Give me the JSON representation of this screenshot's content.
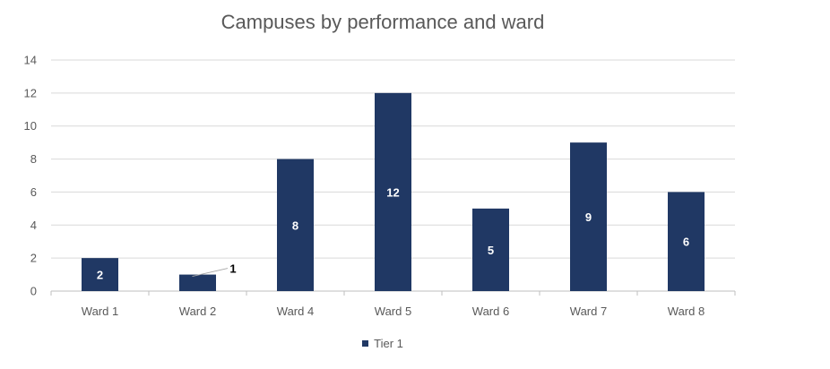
{
  "chart_data": {
    "type": "bar",
    "title": "Campuses by performance and ward",
    "categories": [
      "Ward 1",
      "Ward 2",
      "Ward 4",
      "Ward 5",
      "Ward 6",
      "Ward 7",
      "Ward 8"
    ],
    "series": [
      {
        "name": "Tier 1",
        "values": [
          2,
          1,
          8,
          12,
          5,
          9,
          6
        ],
        "color": "#203864"
      }
    ],
    "ylim": [
      0,
      14
    ],
    "yticks": [
      0,
      2,
      4,
      6,
      8,
      10,
      12,
      14
    ],
    "grid": true,
    "legend_position": "bottom"
  }
}
